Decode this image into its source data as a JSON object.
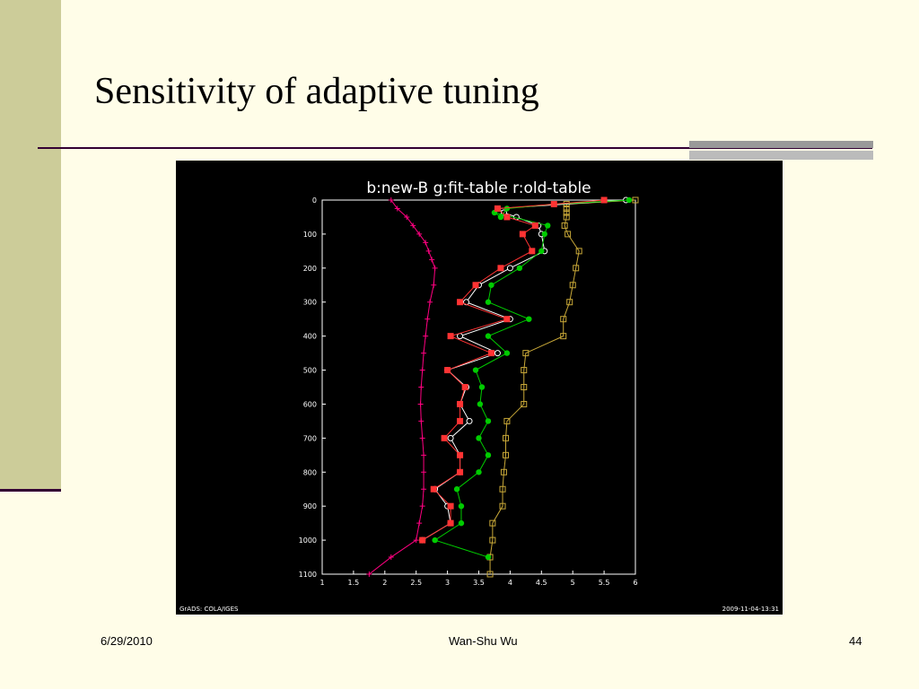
{
  "slide": {
    "title": "Sensitivity of adaptive tuning",
    "date": "6/29/2010",
    "author": "Wan-Shu Wu",
    "page": "44"
  },
  "chart_data": {
    "type": "line",
    "title": "b:new-B  g:fit-table  r:old-table",
    "footer_left": "GrADS: COLA/IGES",
    "footer_right": "2009-11-04-13:31",
    "xlim": [
      1,
      6
    ],
    "ylim": [
      0,
      1100
    ],
    "y_inverted": true,
    "xticks": [
      1,
      1.5,
      2,
      2.5,
      3,
      3.5,
      4,
      4.5,
      5,
      5.5,
      6
    ],
    "yticks": [
      0,
      100,
      200,
      300,
      400,
      500,
      600,
      700,
      800,
      900,
      1000,
      1100
    ],
    "series": [
      {
        "color": "#ff0080",
        "marker": "plus",
        "points": [
          [
            2.1,
            0
          ],
          [
            2.2,
            25
          ],
          [
            2.35,
            50
          ],
          [
            2.45,
            75
          ],
          [
            2.55,
            100
          ],
          [
            2.65,
            125
          ],
          [
            2.7,
            150
          ],
          [
            2.75,
            175
          ],
          [
            2.8,
            200
          ],
          [
            2.78,
            250
          ],
          [
            2.72,
            300
          ],
          [
            2.68,
            350
          ],
          [
            2.65,
            400
          ],
          [
            2.62,
            450
          ],
          [
            2.6,
            500
          ],
          [
            2.58,
            550
          ],
          [
            2.57,
            600
          ],
          [
            2.58,
            650
          ],
          [
            2.6,
            700
          ],
          [
            2.62,
            750
          ],
          [
            2.62,
            800
          ],
          [
            2.62,
            850
          ],
          [
            2.6,
            900
          ],
          [
            2.55,
            950
          ],
          [
            2.5,
            1000
          ],
          [
            2.1,
            1050
          ],
          [
            1.75,
            1100
          ]
        ]
      },
      {
        "color": "#c8a838",
        "marker": "square",
        "points": [
          [
            6,
            0
          ],
          [
            4.9,
            12
          ],
          [
            4.9,
            25
          ],
          [
            4.9,
            37
          ],
          [
            4.9,
            50
          ],
          [
            4.87,
            75
          ],
          [
            4.92,
            100
          ],
          [
            5.1,
            150
          ],
          [
            5.05,
            200
          ],
          [
            5.0,
            250
          ],
          [
            4.95,
            300
          ],
          [
            4.85,
            350
          ],
          [
            4.85,
            400
          ],
          [
            4.25,
            450
          ],
          [
            4.22,
            500
          ],
          [
            4.22,
            550
          ],
          [
            4.22,
            600
          ],
          [
            3.95,
            650
          ],
          [
            3.93,
            700
          ],
          [
            3.93,
            750
          ],
          [
            3.9,
            800
          ],
          [
            3.88,
            850
          ],
          [
            3.88,
            900
          ],
          [
            3.72,
            950
          ],
          [
            3.72,
            1000
          ],
          [
            3.68,
            1050
          ],
          [
            3.68,
            1100
          ]
        ]
      },
      {
        "color": "#ffffff",
        "marker": "circle",
        "points": [
          [
            5.85,
            0
          ],
          [
            3.8,
            25
          ],
          [
            3.9,
            37
          ],
          [
            4.1,
            50
          ],
          [
            4.45,
            75
          ],
          [
            4.5,
            100
          ],
          [
            4.55,
            150
          ],
          [
            4.0,
            200
          ],
          [
            3.5,
            250
          ],
          [
            3.3,
            300
          ],
          [
            4.0,
            350
          ],
          [
            3.2,
            400
          ],
          [
            3.8,
            450
          ],
          [
            3.0,
            500
          ],
          [
            3.3,
            550
          ],
          [
            3.2,
            600
          ],
          [
            3.35,
            650
          ],
          [
            3.05,
            700
          ],
          [
            3.2,
            750
          ],
          [
            3.2,
            800
          ],
          [
            2.8,
            850
          ],
          [
            3.0,
            900
          ],
          [
            3.05,
            950
          ],
          [
            2.6,
            1000
          ]
        ]
      },
      {
        "color": "#00cc00",
        "marker": "dot",
        "points": [
          [
            5.9,
            0
          ],
          [
            4.7,
            12
          ],
          [
            3.95,
            25
          ],
          [
            3.85,
            50
          ],
          [
            3.75,
            37
          ],
          [
            4.6,
            75
          ],
          [
            4.55,
            100
          ],
          [
            4.5,
            150
          ],
          [
            4.15,
            200
          ],
          [
            3.7,
            250
          ],
          [
            3.65,
            300
          ],
          [
            4.3,
            350
          ],
          [
            3.65,
            400
          ],
          [
            3.95,
            450
          ],
          [
            3.45,
            500
          ],
          [
            3.55,
            550
          ],
          [
            3.52,
            600
          ],
          [
            3.65,
            650
          ],
          [
            3.5,
            700
          ],
          [
            3.65,
            750
          ],
          [
            3.5,
            800
          ],
          [
            3.15,
            850
          ],
          [
            3.22,
            900
          ],
          [
            3.22,
            950
          ],
          [
            2.8,
            1000
          ],
          [
            3.65,
            1050
          ]
        ]
      },
      {
        "color": "#ff3333",
        "marker": "square-filled",
        "points": [
          [
            5.5,
            0
          ],
          [
            4.7,
            12
          ],
          [
            3.8,
            25
          ],
          [
            3.95,
            50
          ],
          [
            4.4,
            75
          ],
          [
            4.2,
            100
          ],
          [
            4.35,
            150
          ],
          [
            3.85,
            200
          ],
          [
            3.45,
            250
          ],
          [
            3.2,
            300
          ],
          [
            3.95,
            350
          ],
          [
            3.05,
            400
          ],
          [
            3.7,
            450
          ],
          [
            3.0,
            500
          ],
          [
            3.28,
            550
          ],
          [
            3.2,
            600
          ],
          [
            3.2,
            650
          ],
          [
            2.95,
            700
          ],
          [
            3.2,
            750
          ],
          [
            3.2,
            800
          ],
          [
            2.78,
            850
          ],
          [
            3.05,
            900
          ],
          [
            3.05,
            950
          ],
          [
            2.6,
            1000
          ]
        ]
      }
    ]
  }
}
